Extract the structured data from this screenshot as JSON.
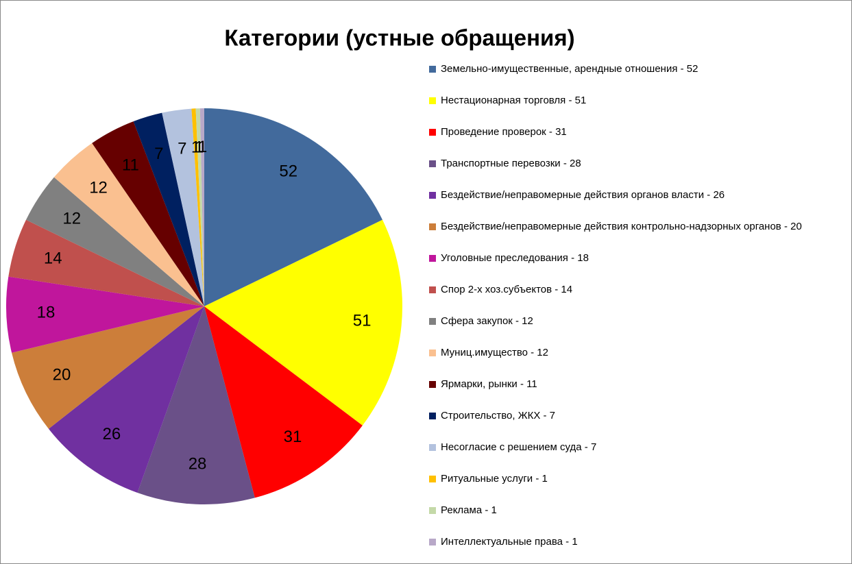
{
  "chart_data": {
    "type": "pie",
    "title": "Категории (устные обращения)",
    "categories": [
      "Земельно-имущественные, арендные отношения - 52",
      "Нестационарная торговля - 51",
      "Проведение проверок - 31",
      "Транспортные перевозки - 28",
      "Бездействие/неправомерные действия органов власти - 26",
      "Бездействие/неправомерные действия контрольно-надзорных органов - 20",
      "Уголовные преследования - 18",
      "Спор 2-х хоз.субъектов - 14",
      "Сфера закупок - 12",
      "Муниц.имущество - 12",
      "Ярмарки, рынки - 11",
      "Строительство, ЖКХ - 7",
      "Несогласие с решением суда - 7",
      "Ритуальные услуги - 1",
      "Реклама - 1",
      "Интеллектуальные права - 1"
    ],
    "values": [
      52,
      51,
      31,
      28,
      26,
      20,
      18,
      14,
      12,
      12,
      11,
      7,
      7,
      1,
      1,
      1
    ],
    "colors": [
      "#426a9c",
      "#ffff00",
      "#ff0000",
      "#6a5088",
      "#7030a0",
      "#cc7e3a",
      "#c0169c",
      "#c0504d",
      "#808080",
      "#fac090",
      "#660000",
      "#002060",
      "#b3c2de",
      "#ffc000",
      "#c4d9a8",
      "#b8a8c8"
    ],
    "legend": "right"
  }
}
